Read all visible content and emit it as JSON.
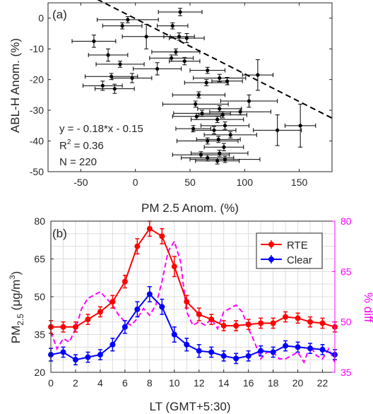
{
  "chart_data": [
    {
      "type": "scatter",
      "panel_label": "(a)",
      "xlabel": "PM 2.5 Anom. (%)",
      "ylabel": "ABL-H Anom. (%)",
      "xlim": [
        -80,
        180
      ],
      "ylim": [
        -50,
        5
      ],
      "x_ticks": [
        -50,
        0,
        50,
        100,
        150
      ],
      "y_ticks": [
        0,
        -10,
        -20,
        -30,
        -40,
        -50
      ],
      "grid": false,
      "annotations": {
        "equation": "y = - 0.18*x - 0.15",
        "r2_prefix": "R",
        "r2_sup": "2",
        "r2_value": " = 0.36",
        "n": "N = 220"
      },
      "fit_line": {
        "slope": -0.18,
        "intercept": -0.15
      },
      "points": [
        {
          "x": 41,
          "y": 2,
          "xerr": 20,
          "yerr": 1.2
        },
        {
          "x": -7,
          "y": -0.5,
          "xerr": 28,
          "yerr": 1.0
        },
        {
          "x": -12,
          "y": -2.5,
          "xerr": 18,
          "yerr": 1.0
        },
        {
          "x": 34,
          "y": -2.5,
          "xerr": 14,
          "yerr": 1.0
        },
        {
          "x": 10,
          "y": -6,
          "xerr": 22,
          "yerr": 4
        },
        {
          "x": 40,
          "y": -6,
          "xerr": 14,
          "yerr": 1.2
        },
        {
          "x": 47,
          "y": -6.5,
          "xerr": 16,
          "yerr": 1.5
        },
        {
          "x": -38,
          "y": -7.5,
          "xerr": 20,
          "yerr": 2
        },
        {
          "x": 37,
          "y": -11,
          "xerr": 22,
          "yerr": 1.0
        },
        {
          "x": -25,
          "y": -12,
          "xerr": 18,
          "yerr": 2
        },
        {
          "x": 33,
          "y": -13,
          "xerr": 20,
          "yerr": 1.0
        },
        {
          "x": 45,
          "y": -14,
          "xerr": 14,
          "yerr": 1.2
        },
        {
          "x": -14,
          "y": -15,
          "xerr": 22,
          "yerr": 1.0
        },
        {
          "x": 20,
          "y": -16.5,
          "xerr": 22,
          "yerr": 2
        },
        {
          "x": 66,
          "y": -17,
          "xerr": 16,
          "yerr": 1.0
        },
        {
          "x": 112,
          "y": -18.5,
          "xerr": 14,
          "yerr": 5
        },
        {
          "x": -3,
          "y": -19.5,
          "xerr": 18,
          "yerr": 1.5
        },
        {
          "x": -22,
          "y": -19,
          "xerr": 24,
          "yerr": 1.0
        },
        {
          "x": 77,
          "y": -19.5,
          "xerr": 24,
          "yerr": 1.2
        },
        {
          "x": 84,
          "y": -20.5,
          "xerr": 14,
          "yerr": 1.2
        },
        {
          "x": 65,
          "y": -21,
          "xerr": 20,
          "yerr": 1.0
        },
        {
          "x": -30,
          "y": -22,
          "xerr": 18,
          "yerr": 1.5
        },
        {
          "x": -19,
          "y": -23,
          "xerr": 18,
          "yerr": 1.5
        },
        {
          "x": 58,
          "y": -25,
          "xerr": 24,
          "yerr": 1.0
        },
        {
          "x": 104,
          "y": -27,
          "xerr": 26,
          "yerr": 2
        },
        {
          "x": 55,
          "y": -28,
          "xerr": 30,
          "yerr": 1.0
        },
        {
          "x": 77,
          "y": -29.5,
          "xerr": 20,
          "yerr": 1.0
        },
        {
          "x": 96,
          "y": -30.5,
          "xerr": 28,
          "yerr": 1.0
        },
        {
          "x": 61,
          "y": -31,
          "xerr": 26,
          "yerr": 1.0
        },
        {
          "x": 80,
          "y": -31.5,
          "xerr": 22,
          "yerr": 1.0
        },
        {
          "x": 56,
          "y": -32,
          "xerr": 22,
          "yerr": 1.0
        },
        {
          "x": 75,
          "y": -33,
          "xerr": 24,
          "yerr": 1.0
        },
        {
          "x": 82,
          "y": -35,
          "xerr": 22,
          "yerr": 1.2
        },
        {
          "x": 130,
          "y": -36.5,
          "xerr": 22,
          "yerr": 5
        },
        {
          "x": 151,
          "y": -35,
          "xerr": 14,
          "yerr": 7
        },
        {
          "x": 53,
          "y": -36,
          "xerr": 16,
          "yerr": 1.0
        },
        {
          "x": 72,
          "y": -36.5,
          "xerr": 20,
          "yerr": 1.2
        },
        {
          "x": 87,
          "y": -38,
          "xerr": 24,
          "yerr": 1.0
        },
        {
          "x": 76,
          "y": -39.5,
          "xerr": 20,
          "yerr": 1.0
        },
        {
          "x": 66,
          "y": -40,
          "xerr": 28,
          "yerr": 1.0
        },
        {
          "x": 81,
          "y": -42,
          "xerr": 18,
          "yerr": 1.2
        },
        {
          "x": 77,
          "y": -44,
          "xerr": 26,
          "yerr": 1.0
        },
        {
          "x": 60,
          "y": -44.5,
          "xerr": 26,
          "yerr": 1.0
        },
        {
          "x": 66,
          "y": -45.5,
          "xerr": 24,
          "yerr": 1.0
        },
        {
          "x": 82,
          "y": -46,
          "xerr": 32,
          "yerr": 1.0
        },
        {
          "x": 75,
          "y": -46.5,
          "xerr": 20,
          "yerr": 1.0
        }
      ]
    },
    {
      "type": "line",
      "panel_label": "(b)",
      "xlabel": "LT (GMT+5:30)",
      "ylabel_main": "PM",
      "ylabel_sub": "2.5",
      "ylabel_unit": " (μg/m",
      "ylabel_sup": "3",
      "ylabel_close": ")",
      "y2label": "% diff",
      "xlim": [
        0,
        23
      ],
      "ylim": [
        20,
        80
      ],
      "y2lim": [
        35,
        80
      ],
      "x_ticks": [
        0,
        2,
        4,
        6,
        8,
        10,
        12,
        14,
        16,
        18,
        20,
        22
      ],
      "y_ticks": [
        20,
        35,
        50,
        65,
        80
      ],
      "y2_ticks": [
        35,
        50,
        65,
        80
      ],
      "grid": true,
      "legend_position": "top-right",
      "x": [
        0,
        1,
        2,
        3,
        4,
        5,
        6,
        7,
        8,
        9,
        10,
        11,
        12,
        13,
        14,
        15,
        16,
        17,
        18,
        19,
        20,
        21,
        22,
        23
      ],
      "series": [
        {
          "name": "RTE",
          "color": "#ff0000",
          "values": [
            38,
            38,
            38,
            41,
            44,
            48,
            56,
            70,
            77,
            74,
            62,
            48,
            43,
            41,
            38.5,
            38.5,
            39,
            39.5,
            39.5,
            42,
            41.5,
            40,
            39.5,
            38
          ],
          "errors": [
            2.5,
            2,
            2,
            2,
            2,
            2.5,
            2.5,
            3,
            3,
            3,
            4,
            2.5,
            2.5,
            2,
            2,
            2,
            2,
            2,
            2,
            2,
            2,
            2,
            2,
            2
          ]
        },
        {
          "name": "Clear",
          "color": "#0000ff",
          "values": [
            27,
            28,
            25,
            26,
            27,
            31,
            38,
            45,
            51,
            46,
            35,
            31,
            28.5,
            28,
            26.5,
            25.5,
            26.5,
            28.5,
            28,
            30.5,
            30,
            29.5,
            29,
            27
          ],
          "errors": [
            2.5,
            2,
            2,
            2,
            2,
            2.5,
            2.5,
            3,
            3,
            3,
            3,
            2.5,
            2.5,
            2,
            2,
            2,
            2,
            2,
            2,
            2,
            2,
            2,
            2,
            2
          ]
        }
      ],
      "diff_series": {
        "color": "#ff00ff",
        "x": [
          0,
          0.5,
          1,
          1.5,
          2,
          2.5,
          3,
          3.5,
          4,
          4.5,
          5,
          5.5,
          6,
          6.5,
          7,
          7.5,
          8,
          8.5,
          9,
          9.5,
          10,
          10.5,
          11,
          11.5,
          12,
          12.5,
          13,
          13.5,
          14,
          14.5,
          15,
          15.5,
          16,
          16.5,
          17,
          17.5,
          18,
          18.5,
          19,
          19.5,
          20,
          20.5,
          21,
          21.5,
          22,
          22.5,
          23
        ],
        "values": [
          47,
          42,
          45,
          44,
          48,
          54,
          57,
          58,
          59,
          57,
          55,
          52,
          50,
          49,
          51,
          54,
          52,
          55,
          62,
          71,
          74,
          68,
          53,
          49,
          50,
          49,
          51,
          48,
          53,
          54,
          55,
          53,
          48,
          44,
          39,
          41,
          41,
          39,
          39,
          40,
          41,
          38,
          43,
          40,
          39,
          42,
          38
        ]
      }
    }
  ]
}
